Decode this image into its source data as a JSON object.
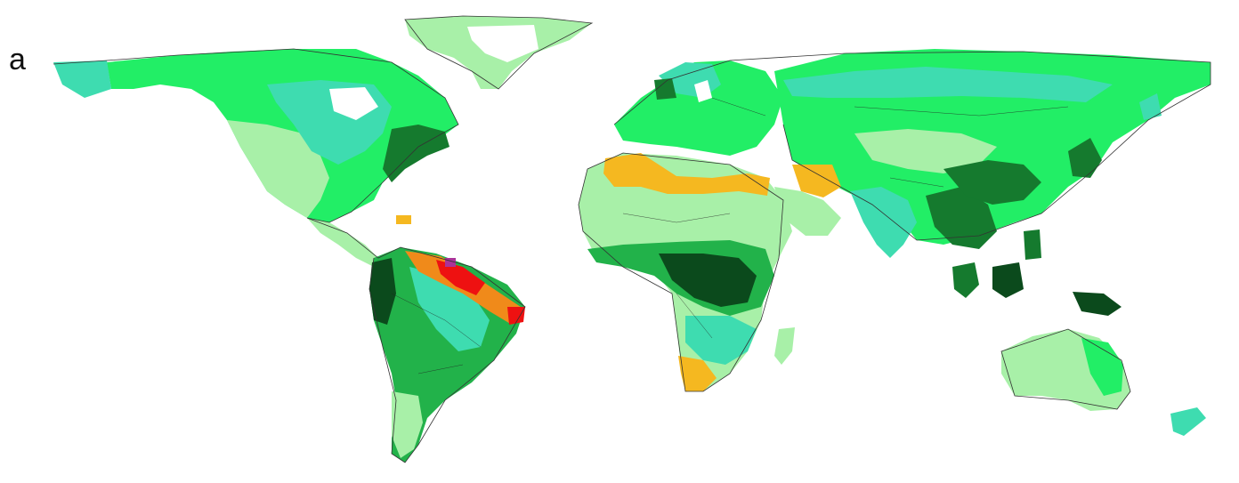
{
  "figure": {
    "panel_label": "a",
    "colors": {
      "pale_green": "#a8f0a8",
      "bright_green": "#22ee66",
      "teal": "#3edcb0",
      "mid_green": "#22b24a",
      "dark_green": "#157a2e",
      "very_dark_green": "#0b4a1c",
      "orange_yellow": "#f5b820",
      "orange": "#f08a1a",
      "red": "#ee1111",
      "purple": "#aa3399",
      "coastline": "#333333"
    },
    "regions": [
      {
        "name": "greenland",
        "color": "pale_green"
      },
      {
        "name": "north-america",
        "color": "bright_green"
      },
      {
        "name": "central-america",
        "color": "pale_green"
      },
      {
        "name": "south-america",
        "color": "mid_green"
      },
      {
        "name": "amazon-northeast-hotspot",
        "color": "red"
      },
      {
        "name": "europe",
        "color": "bright_green"
      },
      {
        "name": "north-africa",
        "color": "orange_yellow"
      },
      {
        "name": "africa",
        "color": "pale_green"
      },
      {
        "name": "central-africa",
        "color": "very_dark_green"
      },
      {
        "name": "southern-africa",
        "color": "orange_yellow"
      },
      {
        "name": "madagascar",
        "color": "pale_green"
      },
      {
        "name": "asia",
        "color": "bright_green"
      },
      {
        "name": "middle-east",
        "color": "orange_yellow"
      },
      {
        "name": "india",
        "color": "teal"
      },
      {
        "name": "southeast-asia",
        "color": "dark_green"
      },
      {
        "name": "maritime-continent",
        "color": "very_dark_green"
      },
      {
        "name": "australia",
        "color": "pale_green"
      },
      {
        "name": "new-zealand",
        "color": "teal"
      }
    ]
  }
}
